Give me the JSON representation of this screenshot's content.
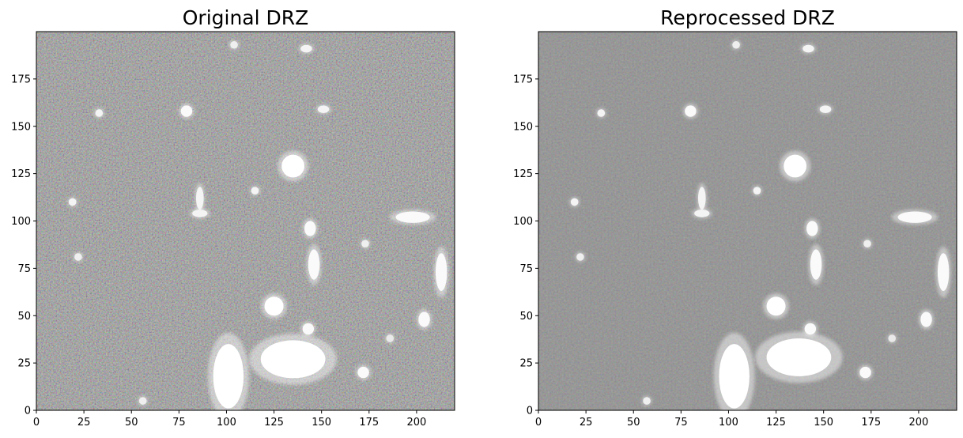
{
  "chart_data": [
    {
      "type": "heatmap",
      "title": "Original DRZ",
      "xlabel": "",
      "ylabel": "",
      "xlim": [
        0,
        220
      ],
      "ylim": [
        0,
        200
      ],
      "xticks": [
        0,
        25,
        50,
        75,
        100,
        125,
        150,
        175,
        200
      ],
      "yticks": [
        0,
        25,
        50,
        75,
        100,
        125,
        150,
        175
      ],
      "colormap": "gray",
      "noise_level": "high",
      "sources": [
        {
          "x": 101,
          "y": 18,
          "rx": 8,
          "ry": 17,
          "brightness": 1.0
        },
        {
          "x": 135,
          "y": 27,
          "rx": 17,
          "ry": 10,
          "brightness": 1.0
        },
        {
          "x": 125,
          "y": 55,
          "rx": 5,
          "ry": 5,
          "brightness": 1.0
        },
        {
          "x": 143,
          "y": 43,
          "rx": 3,
          "ry": 3,
          "brightness": 0.9
        },
        {
          "x": 135,
          "y": 129,
          "rx": 6,
          "ry": 6,
          "brightness": 1.0
        },
        {
          "x": 146,
          "y": 77,
          "rx": 3,
          "ry": 8,
          "brightness": 0.9
        },
        {
          "x": 144,
          "y": 96,
          "rx": 3,
          "ry": 4,
          "brightness": 0.9
        },
        {
          "x": 198,
          "y": 102,
          "rx": 9,
          "ry": 3,
          "brightness": 0.9
        },
        {
          "x": 213,
          "y": 73,
          "rx": 3,
          "ry": 10,
          "brightness": 0.9
        },
        {
          "x": 204,
          "y": 48,
          "rx": 3,
          "ry": 4,
          "brightness": 0.9
        },
        {
          "x": 172,
          "y": 20,
          "rx": 3,
          "ry": 3,
          "brightness": 0.9
        },
        {
          "x": 79,
          "y": 158,
          "rx": 3,
          "ry": 3,
          "brightness": 0.9
        },
        {
          "x": 33,
          "y": 157,
          "rx": 2,
          "ry": 2,
          "brightness": 0.8
        },
        {
          "x": 142,
          "y": 191,
          "rx": 3,
          "ry": 2,
          "brightness": 0.8
        },
        {
          "x": 151,
          "y": 159,
          "rx": 3,
          "ry": 2,
          "brightness": 0.8
        },
        {
          "x": 115,
          "y": 116,
          "rx": 2,
          "ry": 2,
          "brightness": 0.8
        },
        {
          "x": 86,
          "y": 112,
          "rx": 2,
          "ry": 6,
          "brightness": 0.8
        },
        {
          "x": 86,
          "y": 104,
          "rx": 4,
          "ry": 2,
          "brightness": 0.8
        },
        {
          "x": 19,
          "y": 110,
          "rx": 2,
          "ry": 2,
          "brightness": 0.8
        },
        {
          "x": 22,
          "y": 81,
          "rx": 2,
          "ry": 2,
          "brightness": 0.7
        },
        {
          "x": 173,
          "y": 88,
          "rx": 2,
          "ry": 2,
          "brightness": 0.7
        },
        {
          "x": 104,
          "y": 193,
          "rx": 2,
          "ry": 2,
          "brightness": 0.7
        },
        {
          "x": 56,
          "y": 5,
          "rx": 2,
          "ry": 2,
          "brightness": 0.7
        },
        {
          "x": 186,
          "y": 38,
          "rx": 2,
          "ry": 2,
          "brightness": 0.6
        }
      ]
    },
    {
      "type": "heatmap",
      "title": "Reprocessed DRZ",
      "xlabel": "",
      "ylabel": "",
      "xlim": [
        0,
        220
      ],
      "ylim": [
        0,
        200
      ],
      "xticks": [
        0,
        25,
        50,
        75,
        100,
        125,
        150,
        175,
        200
      ],
      "yticks": [
        0,
        25,
        50,
        75,
        100,
        125,
        150,
        175
      ],
      "colormap": "gray",
      "noise_level": "low",
      "sources": [
        {
          "x": 103,
          "y": 18,
          "rx": 8,
          "ry": 17,
          "brightness": 1.0
        },
        {
          "x": 137,
          "y": 28,
          "rx": 17,
          "ry": 10,
          "brightness": 1.0
        },
        {
          "x": 125,
          "y": 55,
          "rx": 5,
          "ry": 5,
          "brightness": 1.0
        },
        {
          "x": 143,
          "y": 43,
          "rx": 3,
          "ry": 3,
          "brightness": 0.9
        },
        {
          "x": 135,
          "y": 129,
          "rx": 6,
          "ry": 6,
          "brightness": 1.0
        },
        {
          "x": 146,
          "y": 77,
          "rx": 3,
          "ry": 8,
          "brightness": 0.9
        },
        {
          "x": 144,
          "y": 96,
          "rx": 3,
          "ry": 4,
          "brightness": 0.9
        },
        {
          "x": 198,
          "y": 102,
          "rx": 9,
          "ry": 3,
          "brightness": 0.9
        },
        {
          "x": 213,
          "y": 73,
          "rx": 3,
          "ry": 10,
          "brightness": 0.9
        },
        {
          "x": 204,
          "y": 48,
          "rx": 3,
          "ry": 4,
          "brightness": 0.9
        },
        {
          "x": 172,
          "y": 20,
          "rx": 3,
          "ry": 3,
          "brightness": 0.9
        },
        {
          "x": 80,
          "y": 158,
          "rx": 3,
          "ry": 3,
          "brightness": 0.9
        },
        {
          "x": 33,
          "y": 157,
          "rx": 2,
          "ry": 2,
          "brightness": 0.8
        },
        {
          "x": 142,
          "y": 191,
          "rx": 3,
          "ry": 2,
          "brightness": 0.8
        },
        {
          "x": 151,
          "y": 159,
          "rx": 3,
          "ry": 2,
          "brightness": 0.8
        },
        {
          "x": 115,
          "y": 116,
          "rx": 2,
          "ry": 2,
          "brightness": 0.8
        },
        {
          "x": 86,
          "y": 112,
          "rx": 2,
          "ry": 6,
          "brightness": 0.8
        },
        {
          "x": 86,
          "y": 104,
          "rx": 4,
          "ry": 2,
          "brightness": 0.8
        },
        {
          "x": 19,
          "y": 110,
          "rx": 2,
          "ry": 2,
          "brightness": 0.8
        },
        {
          "x": 22,
          "y": 81,
          "rx": 2,
          "ry": 2,
          "brightness": 0.7
        },
        {
          "x": 173,
          "y": 88,
          "rx": 2,
          "ry": 2,
          "brightness": 0.7
        },
        {
          "x": 104,
          "y": 193,
          "rx": 2,
          "ry": 2,
          "brightness": 0.7
        },
        {
          "x": 57,
          "y": 5,
          "rx": 2,
          "ry": 2,
          "brightness": 0.7
        },
        {
          "x": 186,
          "y": 38,
          "rx": 2,
          "ry": 2,
          "brightness": 0.6
        }
      ]
    }
  ]
}
